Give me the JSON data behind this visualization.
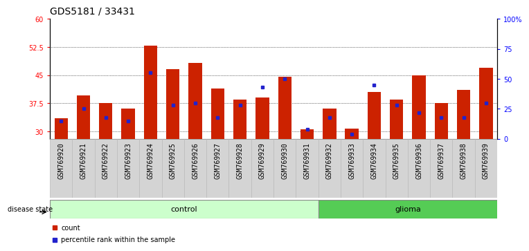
{
  "title": "GDS5181 / 33431",
  "samples": [
    "GSM769920",
    "GSM769921",
    "GSM769922",
    "GSM769923",
    "GSM769924",
    "GSM769925",
    "GSM769926",
    "GSM769927",
    "GSM769928",
    "GSM769929",
    "GSM769930",
    "GSM769931",
    "GSM769932",
    "GSM769933",
    "GSM769934",
    "GSM769935",
    "GSM769936",
    "GSM769937",
    "GSM769938",
    "GSM769939"
  ],
  "counts": [
    33.5,
    39.5,
    37.5,
    36.0,
    52.8,
    46.5,
    48.2,
    41.5,
    38.5,
    39.0,
    44.5,
    30.5,
    36.0,
    30.8,
    40.5,
    38.5,
    45.0,
    37.5,
    41.0,
    47.0
  ],
  "pct_ranks_raw": [
    15,
    25,
    18,
    15,
    55,
    28,
    30,
    18,
    28,
    43,
    50,
    8,
    18,
    4,
    45,
    28,
    22,
    18,
    18,
    30
  ],
  "control_count": 12,
  "glioma_count": 8,
  "ylim_left": [
    28,
    60
  ],
  "yticks_left": [
    30,
    37.5,
    45,
    52.5,
    60
  ],
  "ytick_labels_left": [
    "30",
    "37.5",
    "45",
    "52.5",
    "60"
  ],
  "ylim_right": [
    0,
    100
  ],
  "yticks_right": [
    0,
    25,
    50,
    75,
    100
  ],
  "ytick_labels_right": [
    "0",
    "25",
    "50",
    "75",
    "100%"
  ],
  "bar_color": "#cc2200",
  "marker_color": "#2222cc",
  "control_bg": "#ccffcc",
  "glioma_bg": "#55cc55",
  "title_fontsize": 10,
  "tick_fontsize": 7,
  "label_fontsize": 7
}
